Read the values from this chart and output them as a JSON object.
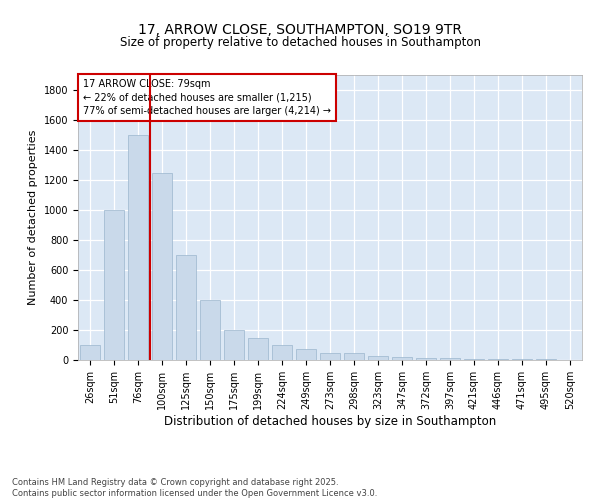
{
  "title_line1": "17, ARROW CLOSE, SOUTHAMPTON, SO19 9TR",
  "title_line2": "Size of property relative to detached houses in Southampton",
  "xlabel": "Distribution of detached houses by size in Southampton",
  "ylabel": "Number of detached properties",
  "categories": [
    "26sqm",
    "51sqm",
    "76sqm",
    "100sqm",
    "125sqm",
    "150sqm",
    "175sqm",
    "199sqm",
    "224sqm",
    "249sqm",
    "273sqm",
    "298sqm",
    "323sqm",
    "347sqm",
    "372sqm",
    "397sqm",
    "421sqm",
    "446sqm",
    "471sqm",
    "495sqm",
    "520sqm"
  ],
  "values": [
    100,
    1000,
    1500,
    1250,
    700,
    400,
    200,
    150,
    100,
    75,
    50,
    50,
    28,
    18,
    15,
    13,
    10,
    8,
    6,
    4,
    2
  ],
  "bar_color": "#c9d9ea",
  "bar_edge_color": "#9ab5cd",
  "vline_x_index": 2,
  "vline_color": "#cc0000",
  "annotation_text": "17 ARROW CLOSE: 79sqm\n← 22% of detached houses are smaller (1,215)\n77% of semi-detached houses are larger (4,214) →",
  "annotation_box_facecolor": "#ffffff",
  "annotation_box_edgecolor": "#cc0000",
  "ylim": [
    0,
    1900
  ],
  "yticks": [
    0,
    200,
    400,
    600,
    800,
    1000,
    1200,
    1400,
    1600,
    1800
  ],
  "background_color": "#dce8f5",
  "footer_text": "Contains HM Land Registry data © Crown copyright and database right 2025.\nContains public sector information licensed under the Open Government Licence v3.0.",
  "title_fontsize": 10,
  "subtitle_fontsize": 8.5,
  "annotation_fontsize": 7,
  "ylabel_fontsize": 8,
  "xlabel_fontsize": 8.5,
  "footer_fontsize": 6,
  "tick_fontsize": 7
}
